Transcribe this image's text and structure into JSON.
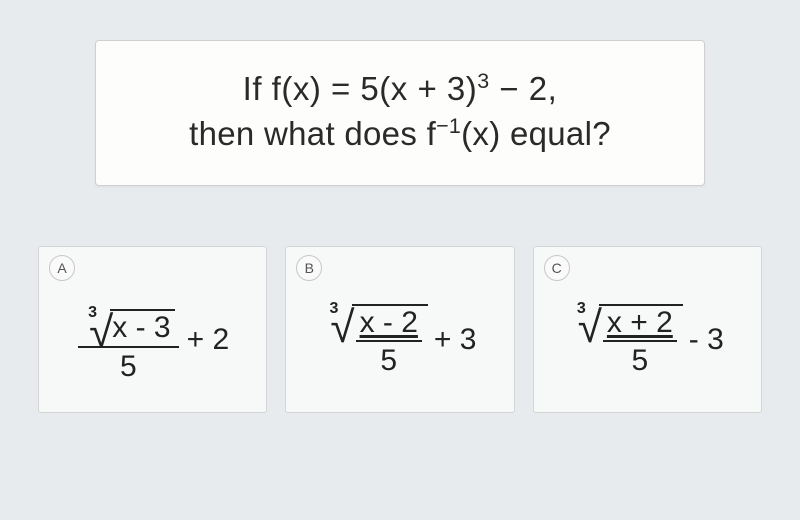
{
  "question": {
    "line1_prefix": "If f(x) = 5(x + 3)",
    "line1_exp": "3",
    "line1_suffix": " − 2,",
    "line2_prefix": "then what does f",
    "line2_exp": "−1",
    "line2_suffix": "(x) equal?",
    "fontsize": 33,
    "color": "#2a2a2a"
  },
  "answers": [
    {
      "label": "A",
      "root_index": "3",
      "structure": "frac_of_root",
      "radicand_text": "x - 3",
      "denominator": "5",
      "tail": "+ 2"
    },
    {
      "label": "B",
      "root_index": "3",
      "structure": "root_of_frac",
      "numerator": "x - 2",
      "denominator": "5",
      "tail": "+ 3"
    },
    {
      "label": "C",
      "root_index": "3",
      "structure": "root_of_frac",
      "numerator": "x + 2",
      "denominator": "5",
      "tail": "- 3"
    }
  ],
  "styling": {
    "page_bg": "#e8ebee",
    "box_bg": "#fdfdfc",
    "answer_bg": "#f7f8f8",
    "border_color": "#d0d0d0",
    "text_color": "#222222",
    "label_border": "#c8c8c8",
    "expr_fontsize": 30,
    "root_index_fontsize": 16
  }
}
